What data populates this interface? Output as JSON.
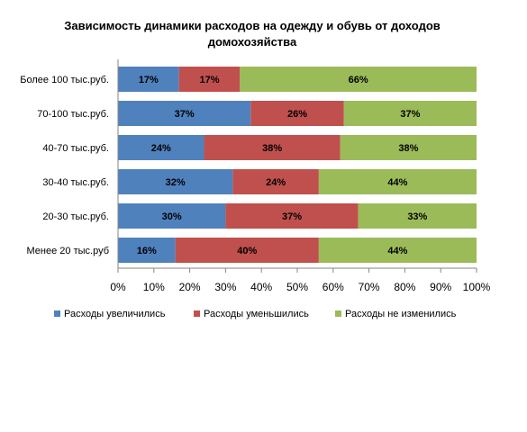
{
  "chart_data": {
    "type": "bar",
    "orientation": "horizontal",
    "stacked": "percent",
    "title": "Зависимость динамики расходов на одежду и обувь от доходов домохозяйства",
    "categories": [
      "Более 100 тыс.руб.",
      "70-100 тыс.руб.",
      "40-70 тыс.руб.",
      "30-40 тыс.руб.",
      "20-30 тыс.руб.",
      "Менее 20 тыс.руб"
    ],
    "series": [
      {
        "name": "Расходы увеличились",
        "color": "#4F81BD",
        "values": [
          17,
          37,
          24,
          32,
          30,
          16
        ]
      },
      {
        "name": "Расходы уменьшились",
        "color": "#C0504D",
        "values": [
          17,
          26,
          38,
          24,
          37,
          40
        ]
      },
      {
        "name": "Расходы не изменились",
        "color": "#9BBB59",
        "values": [
          66,
          37,
          38,
          44,
          33,
          44
        ]
      }
    ],
    "data_labels": [
      [
        "17%",
        "37%",
        "24%",
        "32%",
        "30%",
        "16%"
      ],
      [
        "17%",
        "26%",
        "38%",
        "24%",
        "37%",
        "40%"
      ],
      [
        "66%",
        "37%",
        "38%",
        "44%",
        "33%",
        "44%"
      ]
    ],
    "x_ticks": [
      "0%",
      "10%",
      "20%",
      "30%",
      "40%",
      "50%",
      "60%",
      "70%",
      "80%",
      "90%",
      "100%"
    ],
    "xlim": [
      0,
      100
    ],
    "grid": false,
    "legend_position": "bottom"
  }
}
